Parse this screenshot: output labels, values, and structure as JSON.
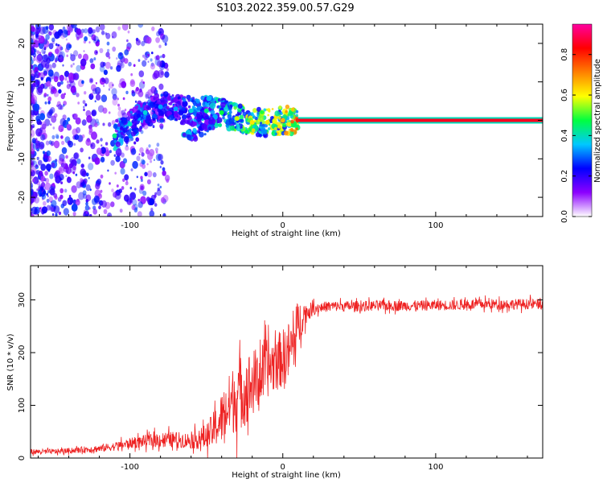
{
  "title": "S103.2022.359.00.57.G29",
  "chart_data": [
    {
      "type": "heatmap",
      "xlabel": "Height of straight line (km)",
      "ylabel": "Frequency (Hz)",
      "xlim": [
        -165,
        170
      ],
      "ylim": [
        -25,
        25
      ],
      "x_ticks": [
        -100,
        0,
        100
      ],
      "y_ticks": [
        -20,
        -10,
        0,
        10,
        20
      ],
      "colorbar": {
        "label": "Normalized spectral amplitude",
        "range": [
          0,
          0.95
        ],
        "ticks": [
          0.0,
          0.2,
          0.4,
          0.6,
          0.8
        ],
        "colormap": [
          "#ffffff",
          "#8c00ff",
          "#0000ff",
          "#00c8ff",
          "#00ff40",
          "#ffff00",
          "#ff8000",
          "#ff0000",
          "#ff00a0"
        ]
      },
      "ridge": [
        {
          "x": -110,
          "y": -4.0,
          "v": 0.35
        },
        {
          "x": -100,
          "y": -1.0,
          "v": 0.3
        },
        {
          "x": -90,
          "y": 2.0,
          "v": 0.3
        },
        {
          "x": -80,
          "y": 3.5,
          "v": 0.25
        },
        {
          "x": -70,
          "y": 3.0,
          "v": 0.25
        },
        {
          "x": -60,
          "y": 2.5,
          "v": 0.3
        },
        {
          "x": -50,
          "y": 2.5,
          "v": 0.35
        },
        {
          "x": -40,
          "y": 2.0,
          "v": 0.4
        },
        {
          "x": -30,
          "y": 0.5,
          "v": 0.5
        },
        {
          "x": -20,
          "y": -0.5,
          "v": 0.55
        },
        {
          "x": -10,
          "y": -0.5,
          "v": 0.55
        },
        {
          "x": 0,
          "y": 0.0,
          "v": 0.6
        },
        {
          "x": 10,
          "y": 0.0,
          "v": 0.75
        }
      ],
      "branch": [
        {
          "x": -65,
          "y": -5.0,
          "v": 0.35
        },
        {
          "x": -55,
          "y": -3.0,
          "v": 0.3
        },
        {
          "x": -45,
          "y": -1.0,
          "v": 0.3
        }
      ],
      "line": {
        "x_start": 10,
        "x_end": 170,
        "y": 0,
        "v": 0.9
      }
    },
    {
      "type": "line",
      "xlabel": "Height of straight line (km)",
      "ylabel": "SNR (10 * v/v)",
      "xlim": [
        -165,
        170
      ],
      "ylim": [
        0,
        365
      ],
      "x_ticks": [
        -100,
        0,
        100
      ],
      "y_ticks": [
        0,
        100,
        200,
        300
      ],
      "series": [
        {
          "color": "#ee2222",
          "x": [
            -165,
            -150,
            -140,
            -130,
            -120,
            -110,
            -100,
            -90,
            -80,
            -70,
            -60,
            -50,
            -45,
            -40,
            -35,
            -30,
            -25,
            -20,
            -15,
            -10,
            -5,
            0,
            5,
            8,
            10,
            12,
            15,
            20,
            25,
            30,
            40,
            50,
            60,
            70,
            80,
            90,
            100,
            110,
            120,
            130,
            140,
            150,
            160,
            170
          ],
          "values": [
            12,
            12,
            14,
            16,
            18,
            22,
            28,
            32,
            35,
            35,
            33,
            40,
            55,
            75,
            100,
            120,
            130,
            140,
            155,
            170,
            180,
            190,
            205,
            225,
            250,
            265,
            275,
            283,
            286,
            288,
            288,
            288,
            289,
            289,
            289,
            289,
            290,
            290,
            291,
            292,
            292,
            292,
            292,
            292
          ],
          "noise": [
            5,
            5,
            5,
            6,
            7,
            8,
            10,
            12,
            15,
            15,
            15,
            25,
            35,
            50,
            60,
            70,
            70,
            65,
            60,
            55,
            55,
            55,
            60,
            60,
            50,
            35,
            20,
            12,
            10,
            10,
            10,
            10,
            10,
            10,
            10,
            10,
            10,
            10,
            10,
            10,
            10,
            10,
            10,
            10
          ]
        }
      ]
    }
  ]
}
